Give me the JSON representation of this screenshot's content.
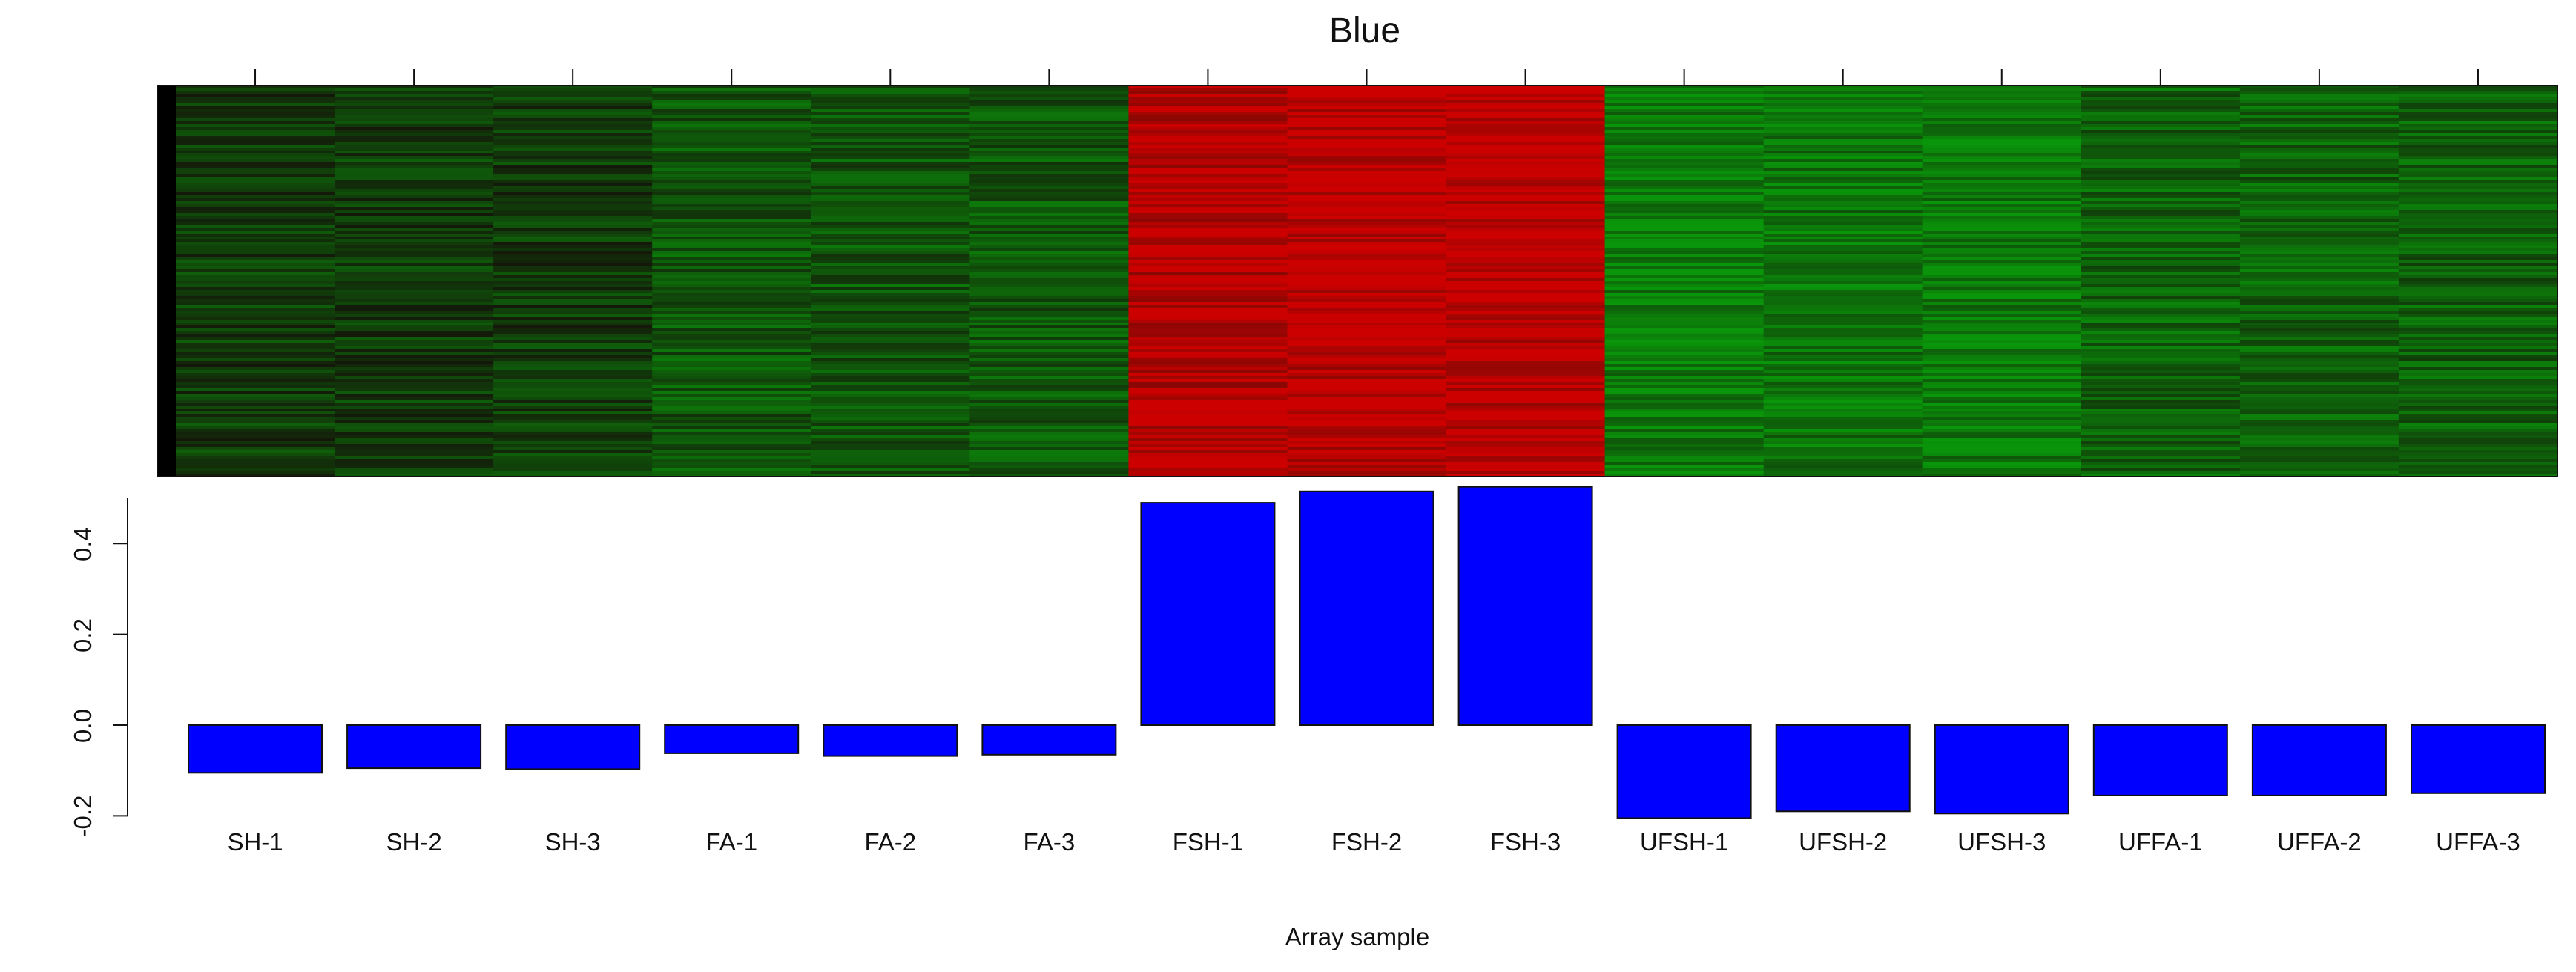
{
  "chart_data": {
    "type": "bar",
    "title": "Blue",
    "xlabel": "Array sample",
    "ylabel": "",
    "categories": [
      "SH-1",
      "SH-2",
      "SH-3",
      "FA-1",
      "FA-2",
      "FA-3",
      "FSH-1",
      "FSH-2",
      "FSH-3",
      "UFSH-1",
      "UFSH-2",
      "UFSH-3",
      "UFFA-1",
      "UFFA-2",
      "UFFA-3"
    ],
    "values": [
      -0.105,
      -0.095,
      -0.097,
      -0.062,
      -0.068,
      -0.065,
      0.49,
      0.515,
      0.525,
      -0.205,
      -0.19,
      -0.195,
      -0.155,
      -0.155,
      -0.15
    ],
    "ylim": [
      -0.2,
      0.5
    ],
    "yticks": [
      "-0.2",
      "0.0",
      "0.2",
      "0.4"
    ],
    "bar_color": "#0000ff",
    "heatmap": {
      "colors": {
        "high": "#cc0000",
        "low": "#0fa00f",
        "mid": "#000000"
      },
      "group_levels": [
        -0.3,
        -0.3,
        -0.3,
        -0.5,
        -0.5,
        -0.5,
        0.9,
        0.95,
        0.95,
        -0.8,
        -0.75,
        -0.78,
        -0.6,
        -0.6,
        -0.58
      ]
    }
  }
}
